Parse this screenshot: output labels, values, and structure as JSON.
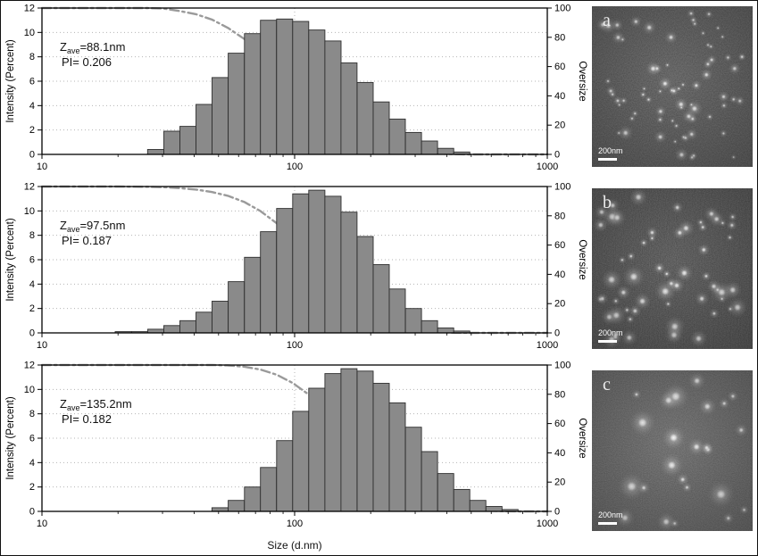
{
  "figure": {
    "xlabel": "Size (d.nm)"
  },
  "chart_data": [
    {
      "type": "bar",
      "panel": "top",
      "ylabel": "Intensity (Percent)",
      "y2label": "Oversize",
      "xlim": [
        10,
        1000
      ],
      "ylim": [
        0,
        12
      ],
      "y2lim": [
        0,
        100
      ],
      "y_ticks": [
        0,
        2,
        4,
        6,
        8,
        10,
        12
      ],
      "y2_ticks": [
        0,
        20,
        40,
        60,
        80,
        100
      ],
      "x_ticks": [
        10,
        100,
        1000
      ],
      "x_tick_labels": [
        "10",
        "100",
        "1000"
      ],
      "annotation": {
        "z_main": "Z",
        "z_sub": "ave",
        "z_rest": "=88.1nm",
        "pi": "PI= 0.206"
      },
      "sizes": [
        28.2,
        32.7,
        37.8,
        43.8,
        50.7,
        58.8,
        68.1,
        78.8,
        91.3,
        105.7,
        122.4,
        141.8,
        164.2,
        190.1,
        220.2,
        255.0,
        295.3,
        342.0,
        396.1,
        458.7
      ],
      "intensities": [
        0.4,
        1.9,
        2.3,
        4.1,
        6.3,
        8.3,
        9.9,
        11.0,
        11.1,
        10.9,
        10.2,
        9.3,
        7.5,
        5.9,
        4.3,
        2.9,
        1.8,
        1.1,
        0.5,
        0.2
      ],
      "curve": "oversize-cumulative"
    },
    {
      "type": "bar",
      "panel": "middle",
      "ylabel": "Intensity (Percent)",
      "y2label": "Oversize",
      "xlim": [
        10,
        1000
      ],
      "ylim": [
        0,
        12
      ],
      "y2lim": [
        0,
        100
      ],
      "y_ticks": [
        0,
        2,
        4,
        6,
        8,
        10,
        12
      ],
      "y2_ticks": [
        0,
        20,
        40,
        60,
        80,
        100
      ],
      "x_ticks": [
        10,
        100,
        1000
      ],
      "x_tick_labels": [
        "10",
        "100",
        "1000"
      ],
      "annotation": {
        "z_main": "Z",
        "z_sub": "ave",
        "z_rest": "=97.5nm",
        "pi": "PI= 0.187"
      },
      "sizes": [
        21.0,
        24.4,
        28.2,
        32.7,
        37.8,
        43.8,
        50.7,
        58.8,
        68.1,
        78.8,
        91.3,
        105.7,
        122.4,
        141.8,
        164.2,
        190.1,
        220.2,
        255.0,
        295.3,
        342.0,
        396.1,
        458.7
      ],
      "intensities": [
        0.1,
        0.1,
        0.3,
        0.6,
        1.0,
        1.7,
        2.6,
        4.2,
        6.2,
        8.3,
        10.2,
        11.4,
        11.7,
        11.2,
        9.9,
        7.9,
        5.6,
        3.6,
        2.0,
        1.0,
        0.4,
        0.15
      ],
      "curve": "oversize-cumulative"
    },
    {
      "type": "bar",
      "panel": "bottom",
      "ylabel": "Intensity (Percent)",
      "y2label": "Oversize",
      "xlim": [
        10,
        1000
      ],
      "ylim": [
        0,
        12
      ],
      "y2lim": [
        0,
        100
      ],
      "y_ticks": [
        0,
        2,
        4,
        6,
        8,
        10,
        12
      ],
      "y2_ticks": [
        0,
        20,
        40,
        60,
        80,
        100
      ],
      "x_ticks": [
        10,
        100,
        1000
      ],
      "x_tick_labels": [
        "10",
        "100",
        "1000"
      ],
      "annotation": {
        "z_main": "Z",
        "z_sub": "ave",
        "z_rest": "=135.2nm",
        "pi": "PI= 0.182"
      },
      "sizes": [
        50.7,
        58.8,
        68.1,
        78.8,
        91.3,
        105.7,
        122.4,
        141.8,
        164.2,
        190.1,
        220.2,
        255.0,
        295.3,
        342.0,
        396.1,
        458.7,
        531.2,
        615.1,
        712.4
      ],
      "intensities": [
        0.3,
        0.9,
        2.0,
        3.6,
        5.8,
        8.2,
        10.1,
        11.3,
        11.7,
        11.5,
        10.5,
        8.9,
        6.9,
        4.9,
        3.1,
        1.8,
        0.9,
        0.4,
        0.15
      ],
      "curve": "oversize-cumulative"
    }
  ],
  "tem_images": [
    {
      "label": "a",
      "scale_bar": "200nm",
      "style": {
        "seed": 11,
        "dots": 72,
        "min_r": 1.3,
        "max_r": 3.8,
        "bg": "#4f4f4f"
      }
    },
    {
      "label": "b",
      "scale_bar": "200nm",
      "style": {
        "seed": 23,
        "dots": 58,
        "min_r": 1.8,
        "max_r": 5.2,
        "bg": "#474747"
      }
    },
    {
      "label": "c",
      "scale_bar": "200nm",
      "style": {
        "seed": 37,
        "dots": 24,
        "min_r": 2.2,
        "max_r": 7.0,
        "bg": "#5d5d5d"
      }
    }
  ],
  "colors": {
    "bar_fill": "#8a8a8a",
    "bar_stroke": "#2e2e2e",
    "curve": "#9a9a9a",
    "grid": "#b5b5b5",
    "axis": "#000000"
  }
}
